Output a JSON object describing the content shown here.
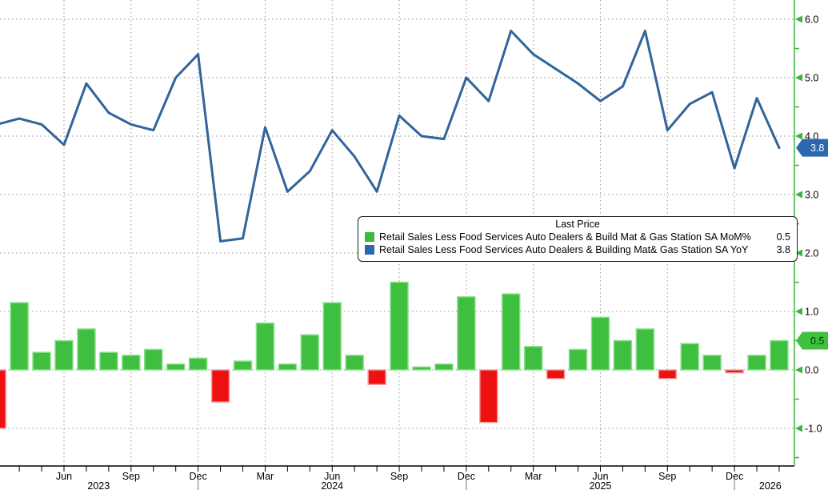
{
  "chart_data": {
    "type": "combo",
    "title": "Last Price",
    "months": [
      "Mar 2023",
      "Apr 2023",
      "May 2023",
      "Jun 2023",
      "Jul 2023",
      "Aug 2023",
      "Sep 2023",
      "Oct 2023",
      "Nov 2023",
      "Dec 2023",
      "Jan 2024",
      "Feb 2024",
      "Mar 2024",
      "Apr 2024",
      "May 2024",
      "Jun 2024",
      "Jul 2024",
      "Aug 2024",
      "Sep 2024",
      "Oct 2024",
      "Nov 2024",
      "Dec 2024",
      "Jan 2025",
      "Feb 2025",
      "Mar 2025",
      "Apr 2025",
      "May 2025",
      "Jun 2025",
      "Jul 2025",
      "Aug 2025",
      "Sep 2025",
      "Oct 2025",
      "Nov 2025",
      "Dec 2025",
      "Jan 2026",
      "Feb 2026"
    ],
    "series": [
      {
        "name": "Retail Sales Less Food Services Auto Dealers & Build Mat & Gas Station SA MoM%",
        "type": "bar",
        "last_price": 0.5,
        "values": [
          -1.0,
          1.15,
          0.3,
          0.5,
          0.7,
          0.3,
          0.25,
          0.35,
          0.1,
          0.2,
          -0.55,
          0.15,
          0.8,
          0.1,
          0.6,
          1.15,
          0.25,
          -0.25,
          1.5,
          0.05,
          0.1,
          1.25,
          -0.9,
          1.3,
          0.4,
          -0.15,
          0.35,
          0.9,
          0.5,
          0.7,
          -0.15,
          0.45,
          0.25,
          -0.05,
          0.25,
          0.5
        ]
      },
      {
        "name": "Retail Sales Less Food Services Auto Dealers & Building Mat& Gas Station SA YoY",
        "type": "line",
        "last_price": 3.8,
        "values": [
          4.2,
          4.3,
          4.2,
          3.85,
          4.9,
          4.4,
          4.2,
          4.1,
          5.0,
          5.4,
          2.2,
          2.25,
          4.15,
          3.05,
          3.4,
          4.1,
          3.65,
          3.05,
          4.35,
          4.0,
          3.95,
          5.0,
          4.6,
          5.8,
          5.4,
          5.15,
          4.9,
          4.6,
          4.85,
          5.8,
          4.1,
          4.55,
          4.75,
          3.45,
          4.65,
          3.8
        ]
      }
    ],
    "ylim": [
      -1.64,
      6.33
    ],
    "grid": true,
    "legend_position": "center-right box",
    "y_ticks_major": [
      6.0,
      5.0,
      4.0,
      3.0,
      2.0,
      1.0,
      0.0,
      -1.0
    ],
    "y_tick_labels": [
      "6.0",
      "5.0",
      "4.0",
      "3.0",
      "2.0",
      "1.0",
      "0.0",
      "-1.0"
    ],
    "y_ticks_minor": [
      5.5,
      4.5,
      3.5,
      2.5,
      1.5,
      0.5,
      -0.5,
      -1.5
    ],
    "x_tick_labels": [
      {
        "month_index": 3,
        "label": "Jun"
      },
      {
        "month_index": 6,
        "label": "Sep"
      },
      {
        "month_index": 9,
        "label": "Dec"
      },
      {
        "month_index": 12,
        "label": "Mar"
      },
      {
        "month_index": 15,
        "label": "Jun"
      },
      {
        "month_index": 18,
        "label": "Sep"
      },
      {
        "month_index": 21,
        "label": "Dec"
      },
      {
        "month_index": 24,
        "label": "Mar"
      },
      {
        "month_index": 27,
        "label": "Jun"
      },
      {
        "month_index": 30,
        "label": "Sep"
      },
      {
        "month_index": 33,
        "label": "Dec"
      }
    ],
    "year_labels": [
      {
        "month_index": 4.55,
        "label": "2023"
      },
      {
        "month_index": 15.0,
        "label": "2024"
      },
      {
        "month_index": 27.0,
        "label": "2025"
      },
      {
        "month_index": 34.6,
        "label": "2026"
      }
    ],
    "year_divider_month_indices": [
      9,
      21,
      33
    ]
  },
  "legend": {
    "title": "Last Price",
    "items": [
      {
        "label": "Retail Sales Less Food Services Auto Dealers & Build Mat & Gas Station SA MoM%",
        "value": "0.5",
        "swatch_color": "#3cba3c"
      },
      {
        "label": "Retail Sales Less Food Services Auto Dealers & Building Mat& Gas Station SA YoY",
        "value": "3.8",
        "swatch_color": "#2d68ad"
      }
    ]
  },
  "last_price_badges": [
    {
      "value": "3.8",
      "numeric": 3.8,
      "fill": "#2d68ad",
      "text_color": "#ffffff"
    },
    {
      "value": "0.5",
      "numeric": 0.5,
      "fill": "#3fc13f",
      "text_color": "#073007"
    }
  ],
  "colors": {
    "bar_positive": "#3fbf3f",
    "bar_positive_edge": "#8fdd8f",
    "bar_negative": "#ee1111",
    "bar_negative_edge": "#f7a0a0",
    "line": "#31649b",
    "axis_green": "#3cb43c",
    "axis_black": "#000000",
    "grid": "#999999",
    "background": "#ffffff"
  }
}
